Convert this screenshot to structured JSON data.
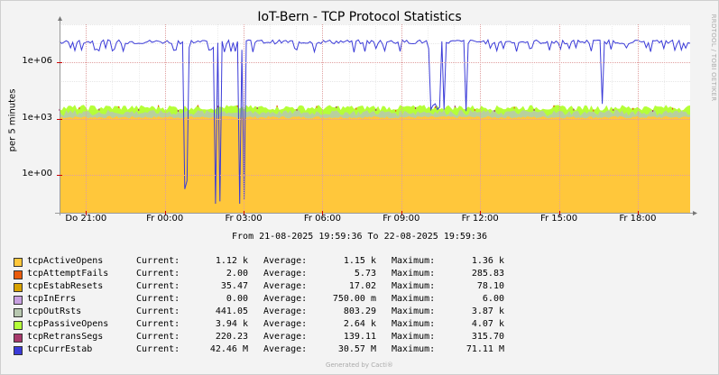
{
  "chart_data": {
    "type": "area",
    "title": "IoT-Bern - TCP Protocol Statistics",
    "ylabel": "per 5 minutes",
    "yscale": "log",
    "ylim": [
      0.01,
      100000000
    ],
    "yticks": [
      {
        "value": 1,
        "label": "1e+00"
      },
      {
        "value": 1000,
        "label": "1e+03"
      },
      {
        "value": 1000000,
        "label": "1e+06"
      }
    ],
    "x_range": [
      "2025-08-21 19:59:36",
      "2025-08-22 19:59:36"
    ],
    "xticks": [
      "Do 21:00",
      "Fr 00:00",
      "Fr 03:00",
      "Fr 06:00",
      "Fr 09:00",
      "Fr 12:00",
      "Fr 15:00",
      "Fr 18:00"
    ],
    "grid": true,
    "legend_position": "bottom",
    "series": [
      {
        "name": "tcpActiveOpens",
        "color": "#FFC73B",
        "current": "1.12 k",
        "average": "1.15 k",
        "maximum": "1.36 k",
        "typical": 1120
      },
      {
        "name": "tcpAttemptFails",
        "color": "#EA5B0C",
        "current": "2.00",
        "average": "5.73",
        "maximum": "285.83",
        "typical": 2
      },
      {
        "name": "tcpEstabResets",
        "color": "#D8A200",
        "current": "35.47",
        "average": "17.02",
        "maximum": "78.10",
        "typical": 35
      },
      {
        "name": "tcpInErrs",
        "color": "#C8A0E0",
        "current": "0.00",
        "average": "750.00 m",
        "maximum": "6.00",
        "typical": 0.75
      },
      {
        "name": "tcpOutRsts",
        "color": "#B8C8B0",
        "current": "441.05",
        "average": "803.29",
        "maximum": "3.87 k",
        "typical": 800
      },
      {
        "name": "tcpPassiveOpens",
        "color": "#B4FF38",
        "current": "3.94 k",
        "average": "2.64 k",
        "maximum": "4.07 k",
        "typical": 2640
      },
      {
        "name": "tcpRetransSegs",
        "color": "#A83A6C",
        "current": "220.23",
        "average": "139.11",
        "maximum": "315.70",
        "typical": 139
      },
      {
        "name": "tcpCurrEstab",
        "color": "#3B3BD8",
        "current": "42.46 M",
        "average": "30.57 M",
        "maximum": "71.11 M",
        "typical": 30570000
      }
    ]
  },
  "range_text": "From 21-08-2025 19:59:36 To 22-08-2025 19:59:36",
  "labels": {
    "current": "Current:",
    "average": "Average:",
    "maximum": "Maximum:"
  },
  "watermark": "RRDTOOL / TOBI OETIKER",
  "footer": "Generated by Cacti®"
}
